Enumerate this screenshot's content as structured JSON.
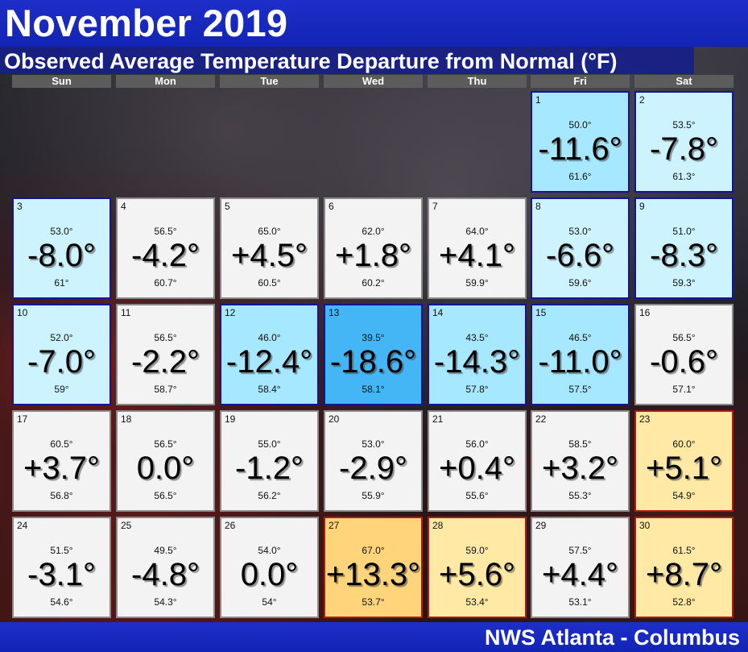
{
  "header": {
    "title": "November 2019",
    "subtitle": "Observed Average Temperature Departure from Normal (°F)"
  },
  "weekdays": [
    "Sun",
    "Mon",
    "Tue",
    "Wed",
    "Thu",
    "Fri",
    "Sat"
  ],
  "start_weekday_index": 5,
  "days": [
    {
      "day": "1",
      "obs": "50.0°",
      "dep": "-11.6°",
      "norm": "61.6°",
      "color": "cool2"
    },
    {
      "day": "2",
      "obs": "53.5°",
      "dep": "-7.8°",
      "norm": "61.3°",
      "color": "cool1"
    },
    {
      "day": "3",
      "obs": "53.0°",
      "dep": "-8.0°",
      "norm": "61°",
      "color": "cool1"
    },
    {
      "day": "4",
      "obs": "56.5°",
      "dep": "-4.2°",
      "norm": "60.7°",
      "color": "neutral"
    },
    {
      "day": "5",
      "obs": "65.0°",
      "dep": "+4.5°",
      "norm": "60.5°",
      "color": "neutral"
    },
    {
      "day": "6",
      "obs": "62.0°",
      "dep": "+1.8°",
      "norm": "60.2°",
      "color": "neutral"
    },
    {
      "day": "7",
      "obs": "64.0°",
      "dep": "+4.1°",
      "norm": "59.9°",
      "color": "neutral"
    },
    {
      "day": "8",
      "obs": "53.0°",
      "dep": "-6.6°",
      "norm": "59.6°",
      "color": "cool1"
    },
    {
      "day": "9",
      "obs": "51.0°",
      "dep": "-8.3°",
      "norm": "59.3°",
      "color": "cool1"
    },
    {
      "day": "10",
      "obs": "52.0°",
      "dep": "-7.0°",
      "norm": "59°",
      "color": "cool1"
    },
    {
      "day": "11",
      "obs": "56.5°",
      "dep": "-2.2°",
      "norm": "58.7°",
      "color": "neutral"
    },
    {
      "day": "12",
      "obs": "46.0°",
      "dep": "-12.4°",
      "norm": "58.4°",
      "color": "cool2"
    },
    {
      "day": "13",
      "obs": "39.5°",
      "dep": "-18.6°",
      "norm": "58.1°",
      "color": "cool3"
    },
    {
      "day": "14",
      "obs": "43.5°",
      "dep": "-14.3°",
      "norm": "57.8°",
      "color": "cool2"
    },
    {
      "day": "15",
      "obs": "46.5°",
      "dep": "-11.0°",
      "norm": "57.5°",
      "color": "cool2"
    },
    {
      "day": "16",
      "obs": "56.5°",
      "dep": "-0.6°",
      "norm": "57.1°",
      "color": "neutral"
    },
    {
      "day": "17",
      "obs": "60.5°",
      "dep": "+3.7°",
      "norm": "56.8°",
      "color": "neutral"
    },
    {
      "day": "18",
      "obs": "56.5°",
      "dep": "0.0°",
      "norm": "56.5°",
      "color": "neutral"
    },
    {
      "day": "19",
      "obs": "55.0°",
      "dep": "-1.2°",
      "norm": "56.2°",
      "color": "neutral"
    },
    {
      "day": "20",
      "obs": "53.0°",
      "dep": "-2.9°",
      "norm": "55.9°",
      "color": "neutral"
    },
    {
      "day": "21",
      "obs": "56.0°",
      "dep": "+0.4°",
      "norm": "55.6°",
      "color": "neutral"
    },
    {
      "day": "22",
      "obs": "58.5°",
      "dep": "+3.2°",
      "norm": "55.3°",
      "color": "neutral"
    },
    {
      "day": "23",
      "obs": "60.0°",
      "dep": "+5.1°",
      "norm": "54.9°",
      "color": "warm1"
    },
    {
      "day": "24",
      "obs": "51.5°",
      "dep": "-3.1°",
      "norm": "54.6°",
      "color": "neutral"
    },
    {
      "day": "25",
      "obs": "49.5°",
      "dep": "-4.8°",
      "norm": "54.3°",
      "color": "neutral"
    },
    {
      "day": "26",
      "obs": "54.0°",
      "dep": "0.0°",
      "norm": "54°",
      "color": "neutral"
    },
    {
      "day": "27",
      "obs": "67.0°",
      "dep": "+13.3°",
      "norm": "53.7°",
      "color": "warm2"
    },
    {
      "day": "28",
      "obs": "59.0°",
      "dep": "+5.6°",
      "norm": "53.4°",
      "color": "warm1"
    },
    {
      "day": "29",
      "obs": "57.5°",
      "dep": "+4.4°",
      "norm": "53.1°",
      "color": "neutral"
    },
    {
      "day": "30",
      "obs": "61.5°",
      "dep": "+8.7°",
      "norm": "52.8°",
      "color": "warm1"
    }
  ],
  "footer": {
    "credit": "NWS Atlanta - Columbus"
  }
}
